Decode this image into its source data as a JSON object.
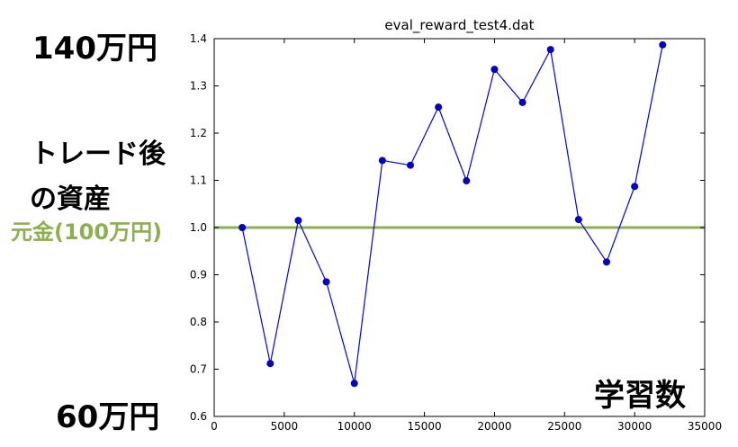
{
  "annotations": {
    "y_top": "140万円",
    "y_bottom": "60万円",
    "asset_line1": "トレード後",
    "asset_line2": "の資産",
    "baseline": "元金(100万円)",
    "x_axis": "学習数"
  },
  "colors": {
    "series": "#0000ff",
    "marker": "#0000c8",
    "baseline": "#8db04f",
    "axes": "#000000"
  },
  "chart_data": {
    "type": "line",
    "title": "eval_reward_test4.dat",
    "xlabel": "",
    "ylabel": "",
    "xlim": [
      0,
      35000
    ],
    "ylim": [
      0.6,
      1.4
    ],
    "xticks": [
      0,
      5000,
      10000,
      15000,
      20000,
      25000,
      30000,
      35000
    ],
    "yticks": [
      0.6,
      0.7,
      0.8,
      0.9,
      1.0,
      1.1,
      1.2,
      1.3,
      1.4
    ],
    "xtick_labels": [
      "0",
      "5000",
      "10000",
      "15000",
      "20000",
      "25000",
      "30000",
      "35000"
    ],
    "ytick_labels": [
      "0.6",
      "0.7",
      "0.8",
      "0.9",
      "1.0",
      "1.1",
      "1.2",
      "1.3",
      "1.4"
    ],
    "x": [
      2000,
      4000,
      6000,
      8000,
      10000,
      12000,
      14000,
      16000,
      18000,
      20000,
      22000,
      24000,
      26000,
      28000,
      30000,
      32000
    ],
    "y": [
      1.0,
      0.712,
      1.015,
      0.885,
      0.67,
      1.142,
      1.132,
      1.255,
      1.099,
      1.335,
      1.265,
      1.377,
      1.017,
      0.927,
      1.087,
      1.387
    ],
    "baseline": 1.0,
    "grid": false
  }
}
